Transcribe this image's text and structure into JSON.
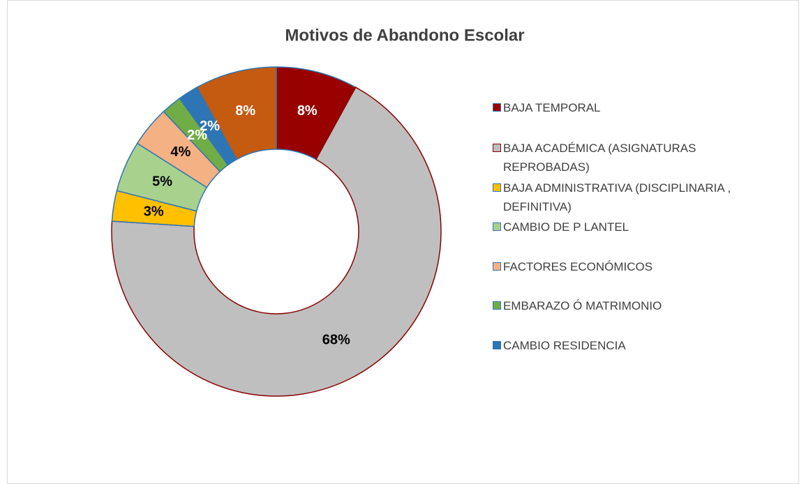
{
  "chart_data": {
    "type": "donut",
    "title": "Motivos de Abandono Escolar",
    "categories": [
      "BAJA TEMPORAL",
      "BAJA ACADÉMICA (ASIGNATURAS REPROBADAS)",
      "BAJA ADMINISTRATIVA (DISCIPLINARIA , DEFINITIVA)",
      "CAMBIO  DE P LANTEL",
      "FACTORES  ECONÓMICOS",
      "EMBARAZO Ó MATRIMONIO",
      "CAMBIO RESIDENCIA",
      null
    ],
    "values": [
      8,
      68,
      3,
      5,
      4,
      2,
      2,
      8
    ],
    "value_labels": [
      "8%",
      "68%",
      "3%",
      "5%",
      "4%",
      "2%",
      "2%",
      "8%"
    ],
    "colors": [
      "#990000",
      "#bfbfbf",
      "#ffc000",
      "#a9d18e",
      "#f4b183",
      "#70ad47",
      "#2e75b6",
      "#c55a11"
    ],
    "edge_colors": [
      "#2e75b6",
      "#8b0000",
      "#2e75b6",
      "#2e75b6",
      "#2e75b6",
      "#2e75b6",
      "#2e75b6",
      "#2e75b6"
    ],
    "label_colors": [
      "#ffffff",
      "#000000",
      "#000000",
      "#000000",
      "#000000",
      "#ffffff",
      "#ffffff",
      "#ffffff"
    ],
    "legend": "right"
  }
}
